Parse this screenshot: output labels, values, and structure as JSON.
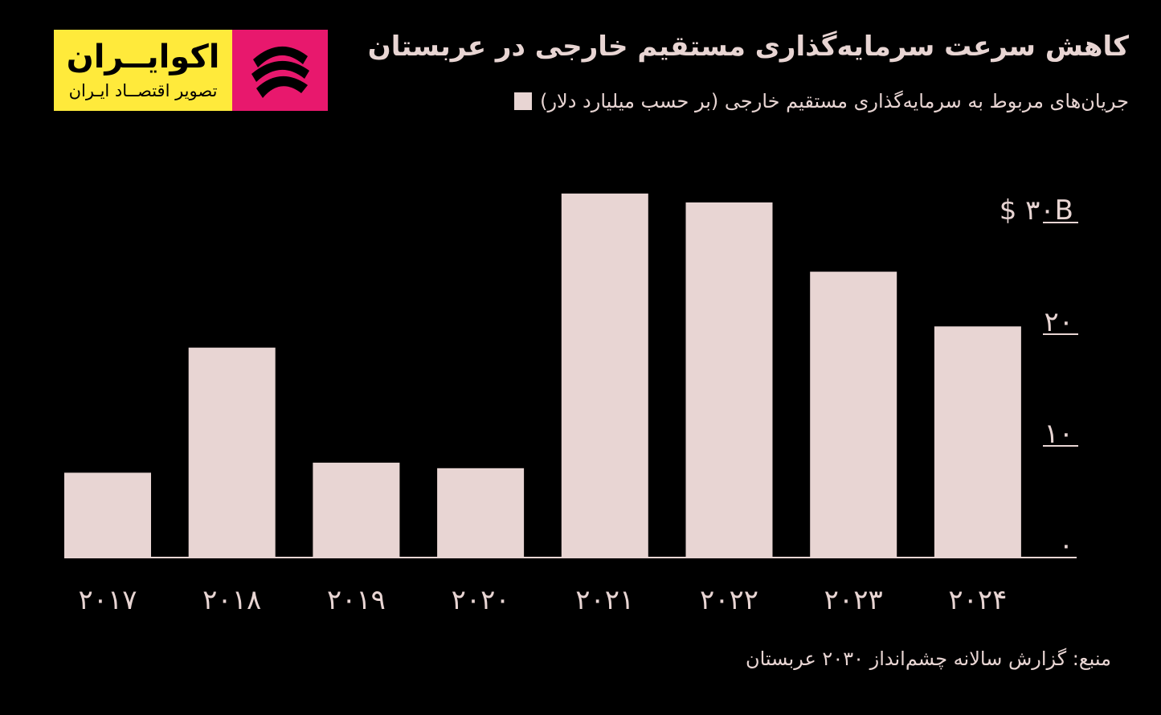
{
  "logo": {
    "name": "اکوایــران",
    "tagline": "تصویر اقتصــاد ایـران",
    "yellow_color": "#ffea3b",
    "pink_color": "#e8186d",
    "icon": "swirl-logo-icon"
  },
  "title": "کاهش سرعت سرمایه‌گذاری مستقیم خارجی در عربستان",
  "legend_label": "جریان‌های مربوط به سرمایه‌گذاری مستقیم خارجی (بر حسب میلیارد دلار)",
  "source": "منبع: گزارش سالانه چشم‌انداز ۲۰۳۰ عربستان",
  "colors": {
    "background": "#000000",
    "bar": "#e8d5d3",
    "text": "#e8d5d3"
  },
  "chart_data": {
    "type": "bar",
    "categories": [
      "۲۰۱۷",
      "۲۰۱۸",
      "۲۰۱۹",
      "۲۰۲۰",
      "۲۰۲۱",
      "۲۰۲۲",
      "۲۰۲۳",
      "۲۰۲۴"
    ],
    "values": [
      7.6,
      18.8,
      8.5,
      8.0,
      32.6,
      31.8,
      25.6,
      20.7
    ],
    "ylim": [
      0,
      33
    ],
    "yticks": [
      0,
      10,
      20,
      30
    ],
    "ytick_labels": [
      "۰",
      "۱۰",
      "۲۰",
      "$ ۳۰B"
    ],
    "grid": false,
    "axis_side": "right"
  }
}
